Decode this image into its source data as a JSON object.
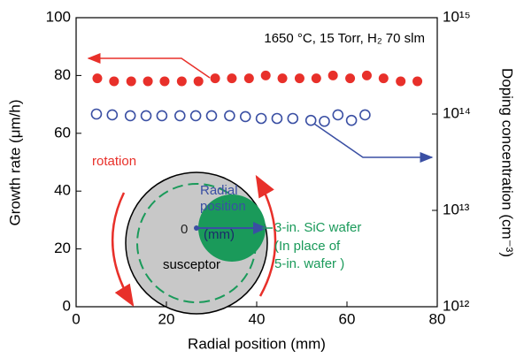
{
  "chart_data": {
    "type": "scatter",
    "xlabel": "Radial position (mm)",
    "ylabel": "Growth rate (μm/h)",
    "y2label": "Doping concentration (cm⁻³)",
    "annotations": [
      "1650 °C, 15 Torr, H₂ 70 slm",
      "rotation",
      "Radial",
      "position",
      "0",
      "(mm)",
      "3-in. SiC wafer",
      "(In place of",
      "5-in. wafer )",
      "susceptor"
    ],
    "xlim": [
      0,
      80
    ],
    "xticks": [
      0,
      20,
      40,
      60,
      80
    ],
    "ylim": [
      0,
      100
    ],
    "yticks": [
      0,
      20,
      40,
      60,
      80,
      100
    ],
    "y2lim": [
      1000000000000.0,
      1000000000000000.0
    ],
    "y2log": true,
    "y2ticks": [
      {
        "value": 1000000000000.0,
        "label": "10¹²"
      },
      {
        "value": 10000000000000.0,
        "label": "10¹³"
      },
      {
        "value": 100000000000000.0,
        "label": "10¹⁴"
      },
      {
        "value": 1000000000000000.0,
        "label": "10¹⁵"
      }
    ],
    "series": [
      {
        "color": "#e8302a",
        "marker": "filled",
        "x": [
          4.7,
          8.4,
          12.2,
          15.9,
          19.6,
          23.4,
          27.1,
          30.8,
          34.5,
          38.3,
          42.0,
          45.7,
          49.5,
          53.2,
          56.9,
          60.7,
          64.4,
          68.1,
          71.9,
          75.6
        ],
        "values": [
          79,
          78,
          78,
          78,
          78,
          78,
          78,
          79,
          79,
          79,
          80,
          79,
          79,
          79,
          80,
          79,
          80,
          79,
          78,
          78
        ]
      },
      {
        "color": "#3a4fa3",
        "marker": "open",
        "axis": "y2",
        "x": [
          4.5,
          8,
          12,
          15.5,
          19,
          23,
          26.5,
          30,
          34,
          37.5,
          41,
          44.5,
          48,
          52,
          55,
          58,
          61,
          64
        ],
        "values": [
          100000000000000.0,
          98000000000000.0,
          96000000000000.0,
          96000000000000.0,
          96000000000000.0,
          96000000000000.0,
          96000000000000.0,
          96000000000000.0,
          96000000000000.0,
          94000000000000.0,
          90000000000000.0,
          90000000000000.0,
          90000000000000.0,
          86000000000000.0,
          84000000000000.0,
          98000000000000.0,
          86000000000000.0,
          98000000000000.0
        ]
      }
    ]
  }
}
